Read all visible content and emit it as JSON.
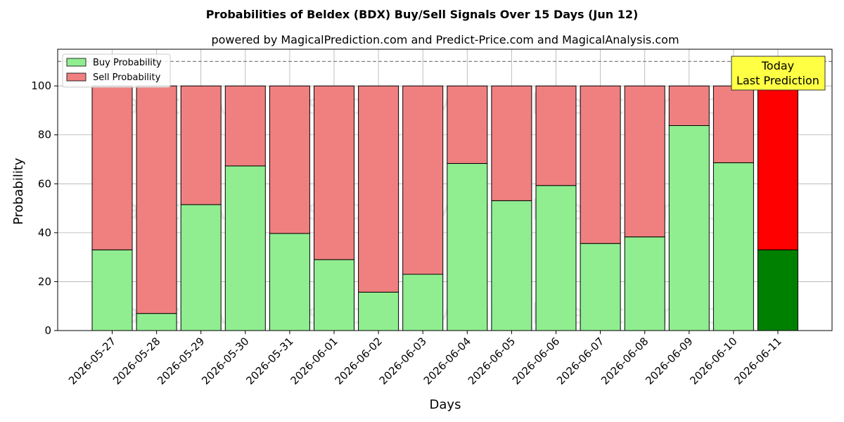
{
  "chart_data": {
    "type": "bar",
    "stacked": true,
    "title": "Probabilities of Beldex (BDX) Buy/Sell Signals Over 15 Days (Jun 12)",
    "subtitle": "powered by MagicalPrediction.com and Predict-Price.com and MagicalAnalysis.com",
    "xlabel": "Days",
    "ylabel": "Probability",
    "ylim": [
      0,
      115
    ],
    "yticks": [
      0,
      20,
      40,
      60,
      80,
      100
    ],
    "reference_line": 110,
    "grid": true,
    "legend_position": "top-left",
    "categories": [
      "2026-05-27",
      "2026-05-28",
      "2026-05-29",
      "2026-05-30",
      "2026-05-31",
      "2026-06-01",
      "2026-06-02",
      "2026-06-03",
      "2026-06-04",
      "2026-06-05",
      "2026-06-06",
      "2026-06-07",
      "2026-06-08",
      "2026-06-09",
      "2026-06-10",
      "2026-06-11"
    ],
    "series": [
      {
        "name": "Buy Probability",
        "color": "#90ee90",
        "highlight_color": "#008000",
        "values": [
          33,
          7,
          51.5,
          67.3,
          39.7,
          29,
          15.7,
          23,
          68.3,
          53.1,
          59.3,
          35.6,
          38.3,
          83.8,
          68.6,
          33
        ]
      },
      {
        "name": "Sell Probability",
        "color": "#f08080",
        "highlight_color": "#ff0000",
        "values": [
          67,
          93,
          48.5,
          32.7,
          60.3,
          71,
          84.3,
          77,
          31.7,
          46.9,
          40.7,
          64.4,
          61.7,
          16.2,
          31.4,
          67
        ]
      }
    ],
    "highlight_index": 15,
    "annotation": {
      "line1": "Today",
      "line2": "Last Prediction",
      "color": "#ffff44"
    },
    "watermarks": [
      "MagicalAnalysis.com",
      "MagicalPrediction.com"
    ]
  }
}
